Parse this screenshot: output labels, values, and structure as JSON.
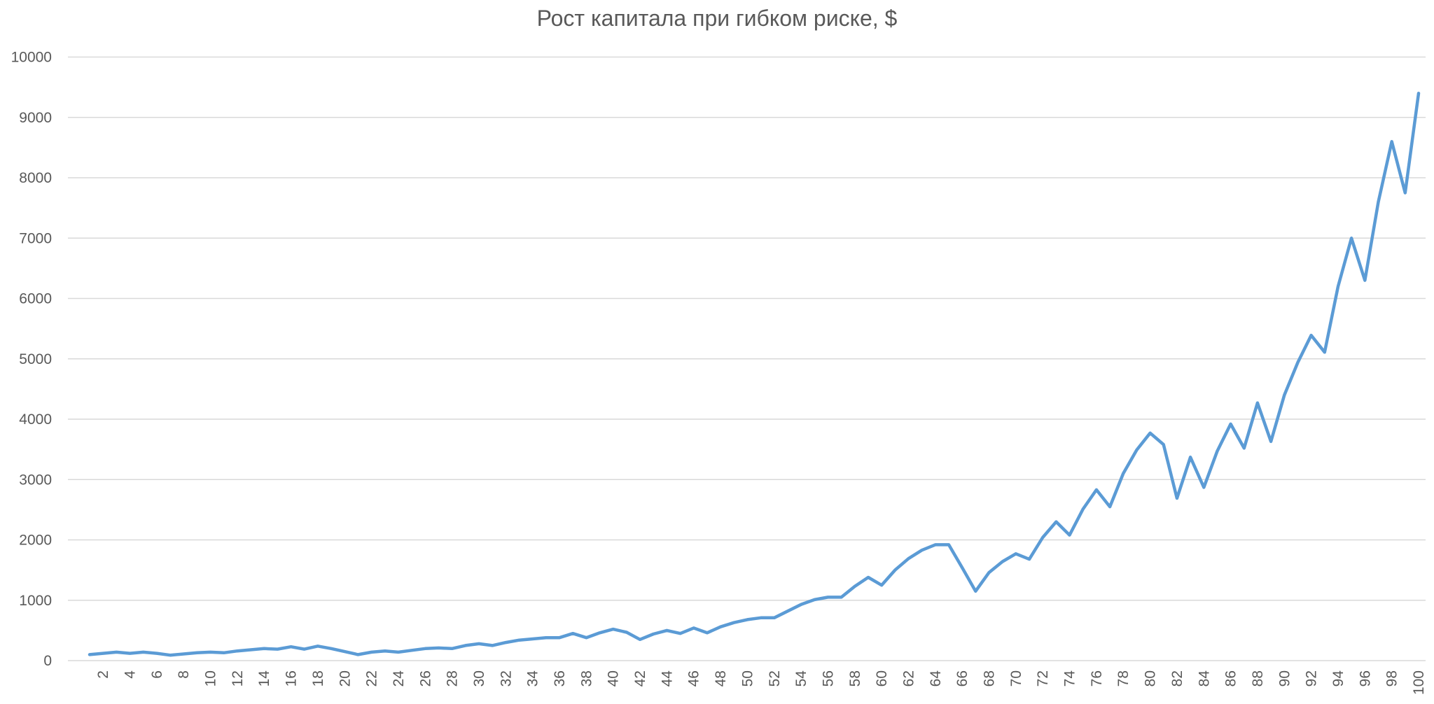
{
  "chart_data": {
    "type": "line",
    "title": "Рост капитала при гибком риске, $",
    "xlabel": "",
    "ylabel": "",
    "ylim": [
      0,
      10000
    ],
    "yticks": [
      0,
      1000,
      2000,
      3000,
      4000,
      5000,
      6000,
      7000,
      8000,
      9000,
      10000
    ],
    "xlim": [
      1,
      100
    ],
    "xtick_labels": [
      "2",
      "4",
      "6",
      "8",
      "10",
      "12",
      "14",
      "16",
      "18",
      "20",
      "22",
      "24",
      "26",
      "28",
      "30",
      "32",
      "34",
      "36",
      "38",
      "40",
      "42",
      "44",
      "46",
      "48",
      "50",
      "52",
      "54",
      "56",
      "58",
      "60",
      "62",
      "64",
      "66",
      "68",
      "70",
      "72",
      "74",
      "76",
      "78",
      "80",
      "82",
      "84",
      "86",
      "88",
      "90",
      "92",
      "94",
      "96",
      "98",
      "100"
    ],
    "grid": true,
    "legend": "none",
    "series": [
      {
        "color": "#5b9bd5",
        "x": [
          1,
          2,
          3,
          4,
          5,
          6,
          7,
          8,
          9,
          10,
          11,
          12,
          13,
          14,
          15,
          16,
          17,
          18,
          19,
          20,
          21,
          22,
          23,
          24,
          25,
          26,
          27,
          28,
          29,
          30,
          31,
          32,
          33,
          34,
          35,
          36,
          37,
          38,
          39,
          40,
          41,
          42,
          43,
          44,
          45,
          46,
          47,
          48,
          49,
          50,
          51,
          52,
          53,
          54,
          55,
          56,
          57,
          58,
          59,
          60,
          61,
          62,
          63,
          64,
          65,
          66,
          67,
          68,
          69,
          70,
          71,
          72,
          73,
          74,
          75,
          76,
          77,
          78,
          79,
          80,
          81,
          82,
          83,
          84,
          85,
          86,
          87,
          88,
          89,
          90,
          91,
          92,
          93,
          94,
          95,
          96,
          97,
          98,
          99,
          100
        ],
        "values": [
          100,
          120,
          140,
          120,
          140,
          120,
          90,
          110,
          130,
          140,
          130,
          160,
          180,
          200,
          190,
          230,
          190,
          240,
          200,
          150,
          100,
          140,
          160,
          140,
          170,
          200,
          210,
          200,
          250,
          280,
          250,
          300,
          340,
          360,
          380,
          380,
          450,
          380,
          460,
          520,
          470,
          350,
          440,
          500,
          450,
          540,
          460,
          560,
          630,
          680,
          710,
          710,
          820,
          930,
          1010,
          1050,
          1050,
          1230,
          1380,
          1250,
          1500,
          1690,
          1830,
          1920,
          1920,
          1540,
          1150,
          1460,
          1640,
          1770,
          1680,
          2040,
          2300,
          2080,
          2510,
          2830,
          2550,
          3100,
          3490,
          3770,
          3580,
          2690,
          3370,
          2870,
          3470,
          3920,
          3520,
          4270,
          3630,
          4400,
          4940,
          5390,
          5110,
          6200,
          7000,
          6300,
          7600,
          8600,
          7750,
          9400
        ]
      }
    ]
  }
}
